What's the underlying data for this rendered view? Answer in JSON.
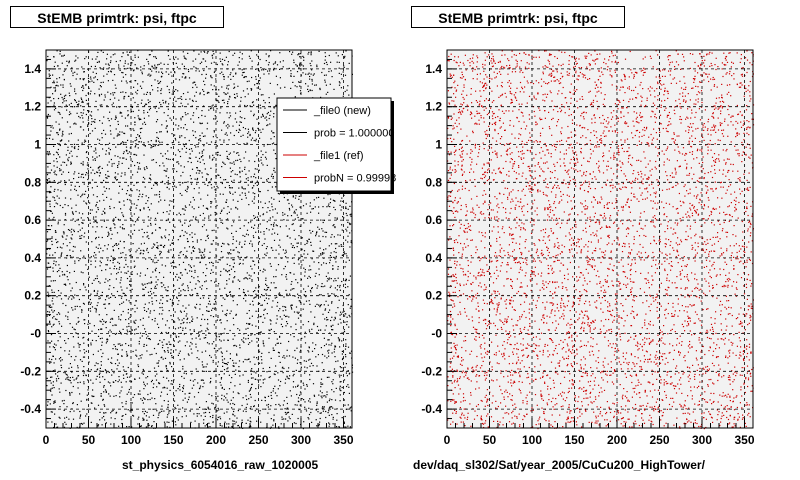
{
  "chart_data": [
    {
      "type": "scatter",
      "title": "StEMB primtrk: psi, ftpc",
      "xlabel": "st_physics_6054016_raw_1020005",
      "ylabel": "",
      "xlim": [
        0,
        360
      ],
      "ylim": [
        -0.5,
        1.5
      ],
      "x_ticks": [
        0,
        50,
        100,
        150,
        200,
        250,
        300,
        350
      ],
      "y_ticks": [
        -0.4,
        -0.2,
        0,
        0.2,
        0.4,
        0.6,
        0.8,
        1,
        1.2,
        1.4
      ],
      "y_tick_labels": [
        "-0.4",
        "-0.2",
        "-0",
        "0.2",
        "0.4",
        "0.6",
        "0.8",
        "1",
        "1.2",
        "1.4"
      ],
      "grid": true,
      "marker_color": "#000000",
      "series": [
        {
          "name": "_file0 (new)",
          "color": "#000000",
          "distribution": "uniform",
          "x_range": [
            0,
            360
          ],
          "y_range": [
            -0.5,
            1.5
          ]
        }
      ],
      "legend": {
        "placement": "top-right",
        "entries": [
          {
            "label": "_file0 (new)",
            "color": "#000000"
          },
          {
            "label": "prob = 1.000000",
            "color": "#000000"
          },
          {
            "label": "_file1 (ref)",
            "color": "#cc0000"
          },
          {
            "label": "probN = 0.99998",
            "color": "#cc0000"
          }
        ]
      }
    },
    {
      "type": "scatter",
      "title": "StEMB primtrk: psi, ftpc",
      "xlabel": "dev/daq_sl302/Sat/year_2005/CuCu200_HighTower/",
      "ylabel": "",
      "xlim": [
        0,
        360
      ],
      "ylim": [
        -0.5,
        1.5
      ],
      "x_ticks": [
        0,
        50,
        100,
        150,
        200,
        250,
        300,
        350
      ],
      "y_ticks": [
        -0.4,
        -0.2,
        0,
        0.2,
        0.4,
        0.6,
        0.8,
        1,
        1.2,
        1.4
      ],
      "y_tick_labels": [
        "-0.4",
        "-0.2",
        "-0",
        "0.2",
        "0.4",
        "0.6",
        "0.8",
        "1",
        "1.2",
        "1.4"
      ],
      "grid": true,
      "marker_color": "#cc0000",
      "series": [
        {
          "name": "_file1 (ref)",
          "color": "#cc0000",
          "distribution": "uniform",
          "x_range": [
            0,
            360
          ],
          "y_range": [
            -0.5,
            1.5
          ]
        }
      ]
    }
  ],
  "colors": {
    "frame_bg": "#f2f2f2",
    "grid": "#000000",
    "axis": "#000000"
  }
}
